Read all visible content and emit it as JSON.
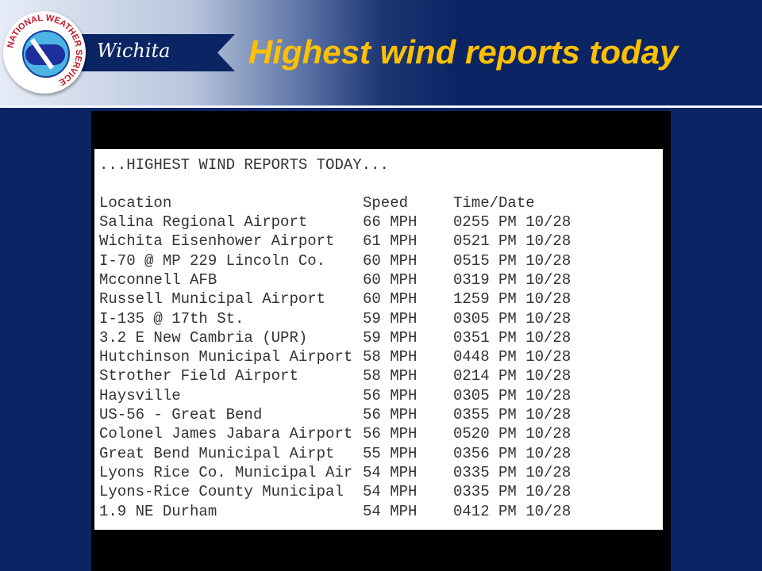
{
  "header": {
    "logo_text": "NATIONAL WEATHER SERVICE",
    "office": "Wichita",
    "title": "Highest wind reports today",
    "colors": {
      "navy": "#0b2463",
      "title": "#ffc000"
    }
  },
  "report": {
    "heading": "...HIGHEST WIND REPORTS TODAY...",
    "columns": [
      "Location",
      "Speed",
      "Time/Date"
    ],
    "rows": [
      [
        "Salina Regional Airport",
        "66 MPH",
        "0255 PM 10/28"
      ],
      [
        "Wichita Eisenhower Airport",
        "61 MPH",
        "0521 PM 10/28"
      ],
      [
        "I-70 @ MP 229 Lincoln Co.",
        "60 MPH",
        "0515 PM 10/28"
      ],
      [
        "Mcconnell AFB",
        "60 MPH",
        "0319 PM 10/28"
      ],
      [
        "Russell Municipal Airport",
        "60 MPH",
        "1259 PM 10/28"
      ],
      [
        "I-135 @ 17th St.",
        "59 MPH",
        "0305 PM 10/28"
      ],
      [
        "3.2 E New Cambria (UPR)",
        "59 MPH",
        "0351 PM 10/28"
      ],
      [
        "Hutchinson Municipal Airport",
        "58 MPH",
        "0448 PM 10/28"
      ],
      [
        "Strother Field Airport",
        "58 MPH",
        "0214 PM 10/28"
      ],
      [
        "Haysville",
        "56 MPH",
        "0305 PM 10/28"
      ],
      [
        "US-56 - Great Bend",
        "56 MPH",
        "0355 PM 10/28"
      ],
      [
        "Colonel James Jabara Airport",
        "56 MPH",
        "0520 PM 10/28"
      ],
      [
        "Great Bend Municipal Airpt",
        "55 MPH",
        "0356 PM 10/28"
      ],
      [
        "Lyons Rice Co. Municipal Air",
        "54 MPH",
        "0335 PM 10/28"
      ],
      [
        "Lyons-Rice County Municipal",
        "54 MPH",
        "0335 PM 10/28"
      ],
      [
        "1.9 NE Durham",
        "54 MPH",
        "0412 PM 10/28"
      ]
    ]
  }
}
